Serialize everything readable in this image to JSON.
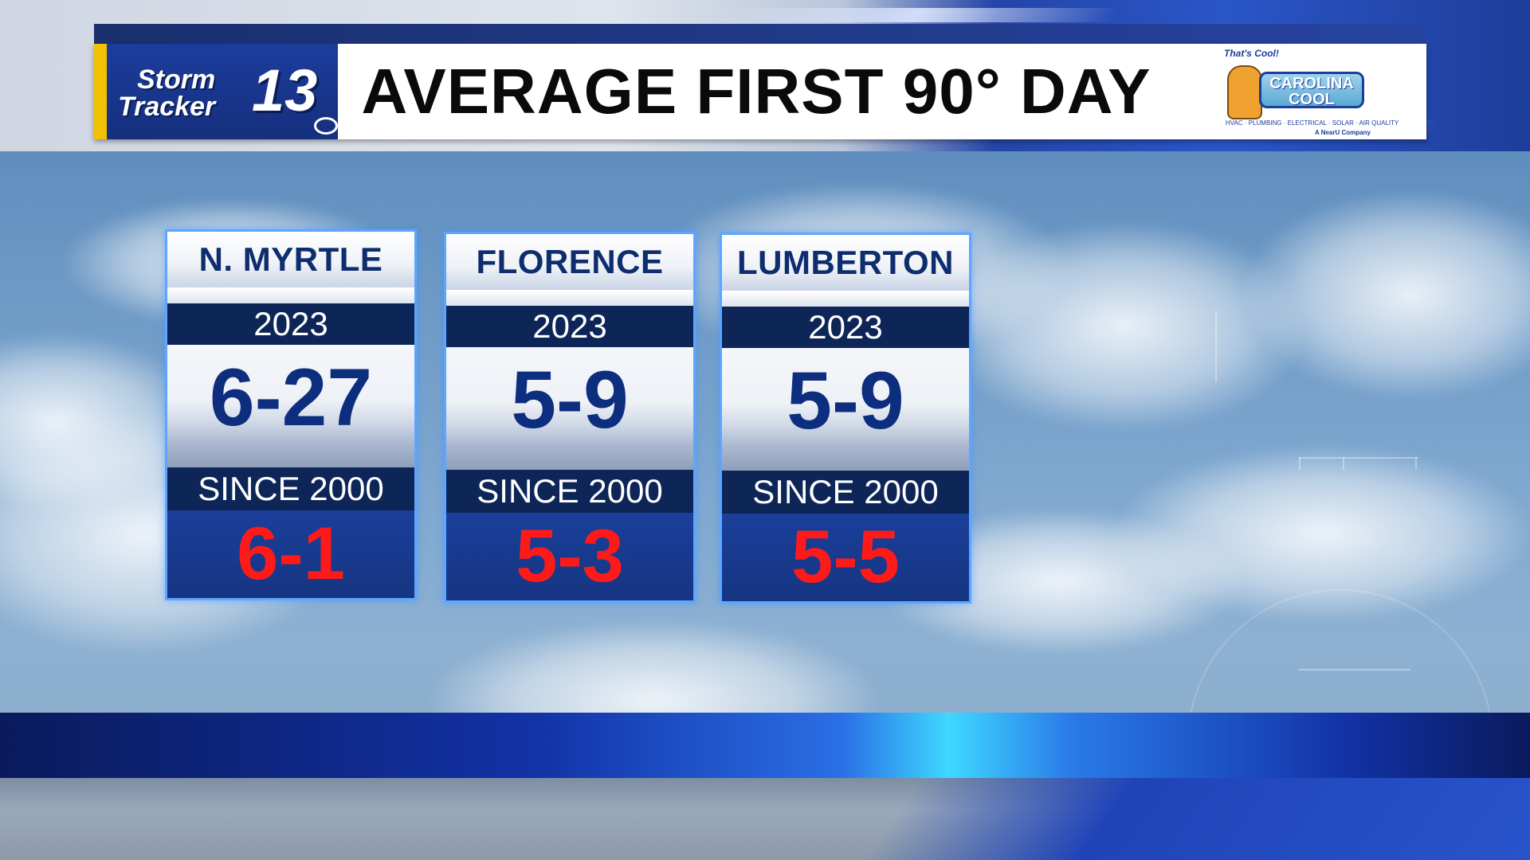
{
  "header": {
    "logo_line1": "Storm",
    "logo_line2": "Tracker",
    "logo_number": "13",
    "title": "AVERAGE FIRST 90° DAY"
  },
  "sponsor": {
    "tagline": "That's Cool!",
    "name_line1": "CAROLINA",
    "name_line2": "COOL",
    "services": "HVAC · PLUMBING · ELECTRICAL · SOLAR · AIR QUALITY",
    "company": "A NearU Company"
  },
  "cards": [
    {
      "city": "N. MYRTLE",
      "year_label": "2023",
      "year_value": "6-27",
      "since_label": "SINCE 2000",
      "since_value": "6-1"
    },
    {
      "city": "FLORENCE",
      "year_label": "2023",
      "year_value": "5-9",
      "since_label": "SINCE 2000",
      "since_value": "5-3"
    },
    {
      "city": "LUMBERTON",
      "year_label": "2023",
      "year_value": "5-9",
      "since_label": "SINCE 2000",
      "since_value": "5-5"
    }
  ],
  "colors": {
    "header_blue": "#162f7e",
    "card_border": "#5da6ff",
    "value_blue": "#0d2d7e",
    "value_red": "#ff1a1a"
  }
}
